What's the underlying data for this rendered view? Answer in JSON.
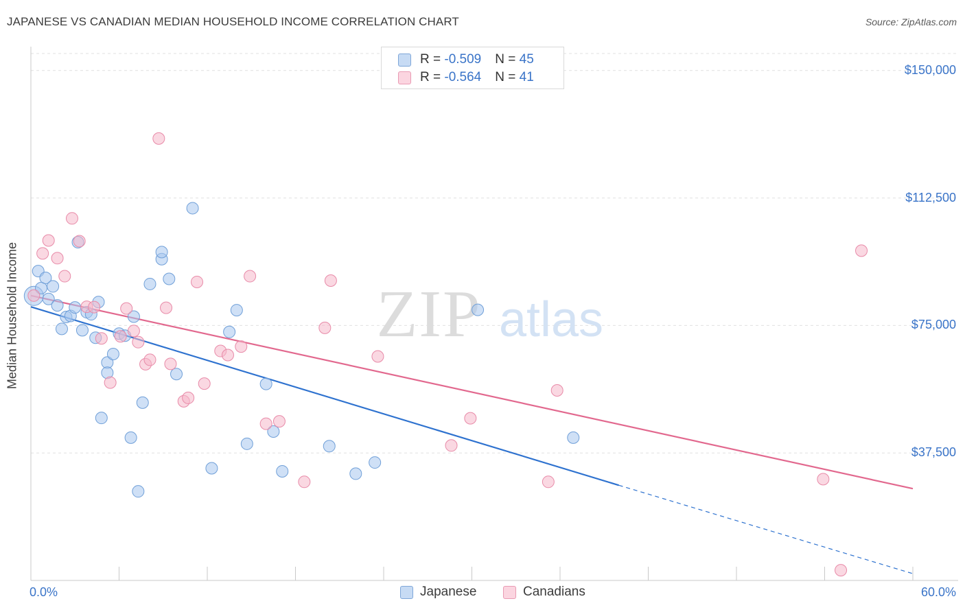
{
  "header": {
    "title": "JAPANESE VS CANADIAN MEDIAN HOUSEHOLD INCOME CORRELATION CHART",
    "source": "Source: ZipAtlas.com"
  },
  "watermark": {
    "zip": "ZIP",
    "atlas": "atlas"
  },
  "legend_top": {
    "rows": [
      {
        "r_label": "R = ",
        "r_value": "-0.509",
        "n_label": "N = ",
        "n_value": "45",
        "color": "#a7c7ee"
      },
      {
        "r_label": "R = ",
        "r_value": "-0.564",
        "n_label": "N = ",
        "n_value": "41",
        "color": "#f5b8cb"
      }
    ]
  },
  "legend_bottom": [
    {
      "label": "Japanese",
      "color": "#a7c7ee"
    },
    {
      "label": "Canadians",
      "color": "#f5b8cb"
    }
  ],
  "chart_data": {
    "type": "scatter",
    "title": "JAPANESE VS CANADIAN MEDIAN HOUSEHOLD INCOME CORRELATION CHART",
    "xlabel": "",
    "ylabel": "Median Household Income",
    "xlim": [
      0,
      60
    ],
    "ylim": [
      0,
      155000
    ],
    "x_tick_labels": [
      "0.0%",
      "60.0%"
    ],
    "y_ticks": [
      {
        "value": 37500,
        "label": "$37,500"
      },
      {
        "value": 75000,
        "label": "$75,000"
      },
      {
        "value": 112500,
        "label": "$112,500"
      },
      {
        "value": 150000,
        "label": "$150,000"
      }
    ],
    "grid": "horizontal dashed",
    "legend": "bottom-center",
    "series": [
      {
        "name": "Japanese",
        "color": "#a7c7ee",
        "stroke": "#6f9fd8",
        "trend_color": "#2e72cf",
        "trend": {
          "x0": 0,
          "y0": 80500,
          "x1": 40,
          "y1": 28000,
          "dashed_to_x": 60,
          "dashed_to_y": 2000
        },
        "points": [
          [
            0.2,
            83700
          ],
          [
            0.5,
            91000
          ],
          [
            0.7,
            86000
          ],
          [
            1.0,
            89000
          ],
          [
            1.2,
            82800
          ],
          [
            1.5,
            86500
          ],
          [
            1.8,
            80900
          ],
          [
            2.1,
            74000
          ],
          [
            2.4,
            77500
          ],
          [
            2.7,
            77800
          ],
          [
            3.0,
            80300
          ],
          [
            3.2,
            99500
          ],
          [
            3.5,
            73600
          ],
          [
            3.8,
            78900
          ],
          [
            4.1,
            78300
          ],
          [
            4.4,
            71400
          ],
          [
            4.6,
            81900
          ],
          [
            4.8,
            47800
          ],
          [
            5.2,
            64100
          ],
          [
            5.2,
            61100
          ],
          [
            5.6,
            66600
          ],
          [
            6.0,
            72600
          ],
          [
            6.4,
            72000
          ],
          [
            6.8,
            42000
          ],
          [
            7.0,
            77600
          ],
          [
            7.3,
            26200
          ],
          [
            7.6,
            52300
          ],
          [
            8.1,
            87200
          ],
          [
            8.9,
            94500
          ],
          [
            8.9,
            96600
          ],
          [
            9.4,
            88700
          ],
          [
            9.9,
            60700
          ],
          [
            11.0,
            109500
          ],
          [
            12.3,
            33000
          ],
          [
            13.5,
            73100
          ],
          [
            14.0,
            79500
          ],
          [
            14.7,
            40200
          ],
          [
            16.0,
            57800
          ],
          [
            16.5,
            43800
          ],
          [
            17.1,
            32100
          ],
          [
            20.3,
            39500
          ],
          [
            22.1,
            31400
          ],
          [
            23.4,
            34700
          ],
          [
            30.4,
            79600
          ],
          [
            36.9,
            42000
          ]
        ]
      },
      {
        "name": "Canadians",
        "color": "#f5b8cb",
        "stroke": "#e88aa8",
        "trend_color": "#e2688e",
        "trend": {
          "x0": 0,
          "y0": 83800,
          "x1": 60,
          "y1": 27000
        },
        "points": [
          [
            0.2,
            83800
          ],
          [
            0.8,
            96200
          ],
          [
            1.2,
            100000
          ],
          [
            1.8,
            94800
          ],
          [
            2.3,
            89500
          ],
          [
            2.8,
            106500
          ],
          [
            3.3,
            99800
          ],
          [
            3.8,
            80500
          ],
          [
            4.3,
            80400
          ],
          [
            4.8,
            71200
          ],
          [
            5.4,
            58200
          ],
          [
            6.1,
            71800
          ],
          [
            6.5,
            80000
          ],
          [
            7.0,
            73400
          ],
          [
            7.3,
            70100
          ],
          [
            7.8,
            63600
          ],
          [
            8.1,
            64900
          ],
          [
            8.7,
            130000
          ],
          [
            9.2,
            80200
          ],
          [
            9.5,
            63700
          ],
          [
            10.4,
            52700
          ],
          [
            10.7,
            53700
          ],
          [
            11.3,
            87800
          ],
          [
            11.8,
            57900
          ],
          [
            12.9,
            67500
          ],
          [
            13.4,
            66300
          ],
          [
            14.3,
            68800
          ],
          [
            14.9,
            89500
          ],
          [
            16.0,
            46100
          ],
          [
            16.9,
            46800
          ],
          [
            18.6,
            29000
          ],
          [
            20.0,
            74300
          ],
          [
            20.4,
            88200
          ],
          [
            23.6,
            65900
          ],
          [
            28.6,
            39700
          ],
          [
            29.9,
            47700
          ],
          [
            35.2,
            29000
          ],
          [
            35.8,
            55900
          ],
          [
            53.9,
            29800
          ],
          [
            55.1,
            3000
          ],
          [
            56.5,
            97000
          ]
        ]
      }
    ]
  }
}
